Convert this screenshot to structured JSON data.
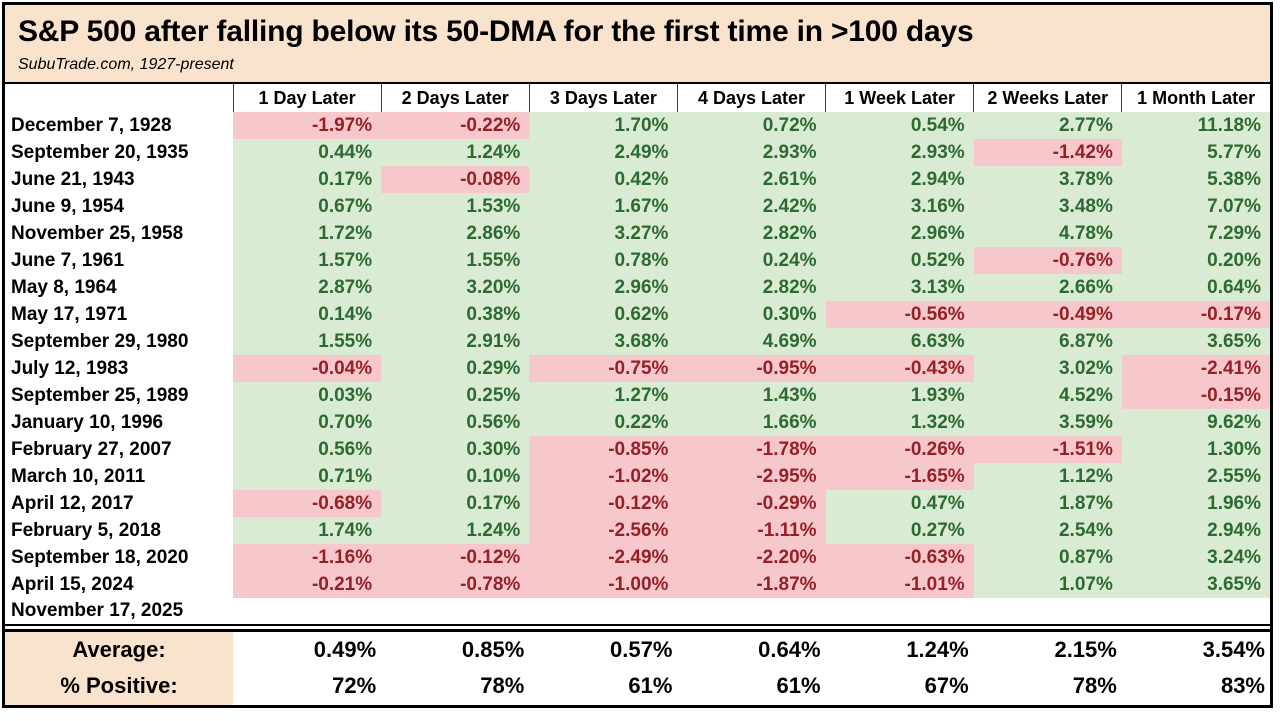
{
  "header": {
    "title": "S&P 500 after falling below its 50-DMA for the first time in >100 days",
    "subtitle": "SubuTrade.com, 1927-present"
  },
  "colors": {
    "title_bg": "#fae3cd",
    "positive_bg": "#d9ecd3",
    "positive_text": "#2d6a31",
    "negative_bg": "#f6c8cc",
    "negative_text": "#952025",
    "border": "#000000"
  },
  "chart_data": {
    "type": "table",
    "title": "S&P 500 after falling below its 50-DMA for the first time in >100 days",
    "subtitle": "SubuTrade.com, 1927-present",
    "unit": "percent",
    "color_coding": "green cell = positive return, pink cell = negative return",
    "columns": [
      "1 Day Later",
      "2 Days Later",
      "3 Days Later",
      "4 Days Later",
      "1 Week Later",
      "2 Weeks Later",
      "1 Month Later"
    ],
    "rows": [
      {
        "date": "December 7, 1928",
        "values": [
          -1.97,
          -0.22,
          1.7,
          0.72,
          0.54,
          2.77,
          11.18
        ]
      },
      {
        "date": "September 20, 1935",
        "values": [
          0.44,
          1.24,
          2.49,
          2.93,
          2.93,
          -1.42,
          5.77
        ]
      },
      {
        "date": "June 21, 1943",
        "values": [
          0.17,
          -0.08,
          0.42,
          2.61,
          2.94,
          3.78,
          5.38
        ]
      },
      {
        "date": "June 9, 1954",
        "values": [
          0.67,
          1.53,
          1.67,
          2.42,
          3.16,
          3.48,
          7.07
        ]
      },
      {
        "date": "November 25, 1958",
        "values": [
          1.72,
          2.86,
          3.27,
          2.82,
          2.96,
          4.78,
          7.29
        ]
      },
      {
        "date": "June 7, 1961",
        "values": [
          1.57,
          1.55,
          0.78,
          0.24,
          0.52,
          -0.76,
          0.2
        ]
      },
      {
        "date": "May 8, 1964",
        "values": [
          2.87,
          3.2,
          2.96,
          2.82,
          3.13,
          2.66,
          0.64
        ]
      },
      {
        "date": "May 17, 1971",
        "values": [
          0.14,
          0.38,
          0.62,
          0.3,
          -0.56,
          -0.49,
          -0.17
        ]
      },
      {
        "date": "September 29, 1980",
        "values": [
          1.55,
          2.91,
          3.68,
          4.69,
          6.63,
          6.87,
          3.65
        ]
      },
      {
        "date": "July 12, 1983",
        "values": [
          -0.04,
          0.29,
          -0.75,
          -0.95,
          -0.43,
          3.02,
          -2.41
        ]
      },
      {
        "date": "September 25, 1989",
        "values": [
          0.03,
          0.25,
          1.27,
          1.43,
          1.93,
          4.52,
          -0.15
        ]
      },
      {
        "date": "January 10, 1996",
        "values": [
          0.7,
          0.56,
          0.22,
          1.66,
          1.32,
          3.59,
          9.62
        ]
      },
      {
        "date": "February 27, 2007",
        "values": [
          0.56,
          0.3,
          -0.85,
          -1.78,
          -0.26,
          -1.51,
          1.3
        ]
      },
      {
        "date": "March 10, 2011",
        "values": [
          0.71,
          0.1,
          -1.02,
          -2.95,
          -1.65,
          1.12,
          2.55
        ]
      },
      {
        "date": "April 12, 2017",
        "values": [
          -0.68,
          0.17,
          -0.12,
          -0.29,
          0.47,
          1.87,
          1.96
        ]
      },
      {
        "date": "February 5, 2018",
        "values": [
          1.74,
          1.24,
          -2.56,
          -1.11,
          0.27,
          2.54,
          2.94
        ]
      },
      {
        "date": "September 18, 2020",
        "values": [
          -1.16,
          -0.12,
          -2.49,
          -2.2,
          -0.63,
          0.87,
          3.24
        ]
      },
      {
        "date": "April 15, 2024",
        "values": [
          -0.21,
          -0.78,
          -1.0,
          -1.87,
          -1.01,
          1.07,
          3.65
        ]
      },
      {
        "date": "November 17, 2025",
        "values": [
          null,
          null,
          null,
          null,
          null,
          null,
          null
        ]
      }
    ],
    "summary": [
      {
        "label": "Average:",
        "values": [
          0.49,
          0.85,
          0.57,
          0.64,
          1.24,
          2.15,
          3.54
        ],
        "decimals": 2
      },
      {
        "label": "% Positive:",
        "values": [
          72,
          78,
          61,
          61,
          67,
          78,
          83
        ],
        "decimals": 0
      }
    ]
  }
}
